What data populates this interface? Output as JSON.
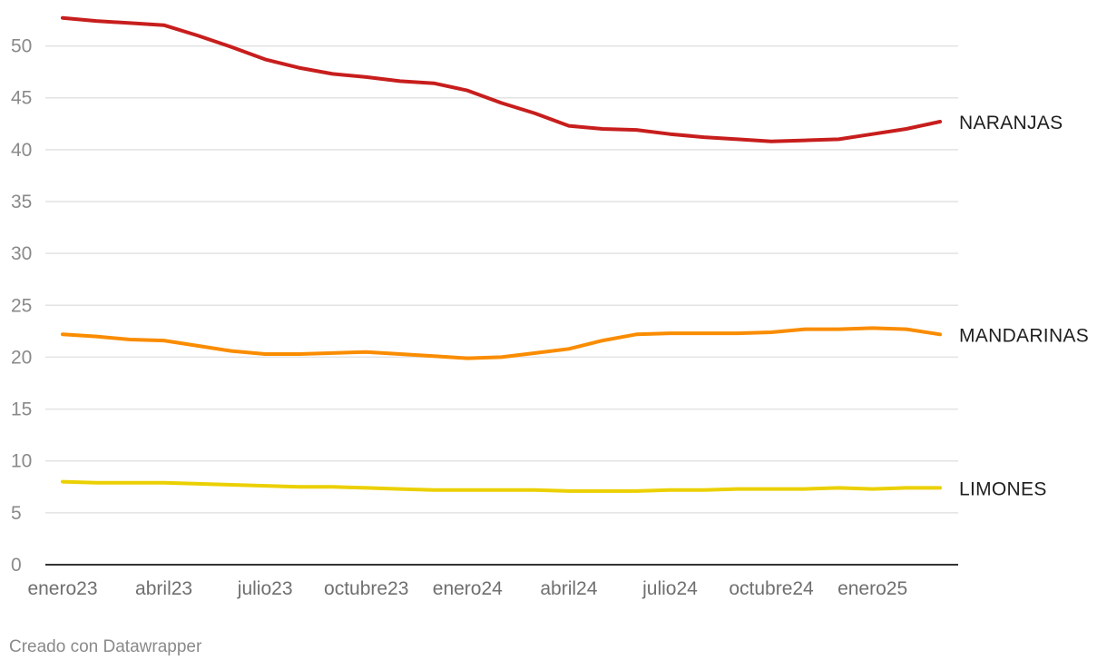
{
  "chart_data": {
    "type": "line",
    "x": [
      "ene 2023",
      "feb 2023",
      "mar 2023",
      "abr 2023",
      "may 2023",
      "jun 2023",
      "jul 2023",
      "ago 2023",
      "sep 2023",
      "oct 2023",
      "nov 2023",
      "dic 2023",
      "ene 2024",
      "feb 2024",
      "mar 2024",
      "abr 2024",
      "may 2024",
      "jun 2024",
      "jul 2024",
      "ago 2024",
      "sep 2024",
      "oct 2024",
      "nov 2024",
      "dic 2024",
      "ene 2025",
      "feb 2025",
      "mar 2025"
    ],
    "xticks": [
      {
        "label": "enero23",
        "at": "ene 2023"
      },
      {
        "label": "abril23",
        "at": "abr 2023"
      },
      {
        "label": "julio23",
        "at": "jul 2023"
      },
      {
        "label": "octubre23",
        "at": "oct 2023"
      },
      {
        "label": "enero24",
        "at": "ene 2024"
      },
      {
        "label": "abril24",
        "at": "abr 2024"
      },
      {
        "label": "julio24",
        "at": "jul 2024"
      },
      {
        "label": "octubre24",
        "at": "oct 2024"
      },
      {
        "label": "enero25",
        "at": "ene 2025"
      }
    ],
    "yticks": [
      0,
      5,
      10,
      15,
      20,
      25,
      30,
      35,
      40,
      45,
      50
    ],
    "ylim": [
      0,
      52.5
    ],
    "grid": true,
    "legend": "direct labels at line ends",
    "series": [
      {
        "name": "NARANJAS",
        "color": "#c71e1d",
        "values": [
          52.7,
          52.4,
          52.2,
          52.0,
          51.0,
          49.9,
          48.7,
          47.9,
          47.3,
          47.0,
          46.6,
          46.4,
          45.7,
          44.5,
          43.5,
          42.3,
          42.0,
          41.9,
          41.5,
          41.2,
          41.0,
          40.8,
          40.9,
          41.0,
          41.5,
          42.0,
          42.7
        ]
      },
      {
        "name": "MANDARINAS",
        "color": "#fa8c00",
        "values": [
          22.2,
          22.0,
          21.7,
          21.6,
          21.1,
          20.6,
          20.3,
          20.3,
          20.4,
          20.5,
          20.3,
          20.1,
          19.9,
          20.0,
          20.4,
          20.8,
          21.6,
          22.2,
          22.3,
          22.3,
          22.3,
          22.4,
          22.7,
          22.7,
          22.8,
          22.7,
          22.2
        ]
      },
      {
        "name": "LIMONES",
        "color": "#ebd001",
        "values": [
          8.0,
          7.9,
          7.9,
          7.9,
          7.8,
          7.7,
          7.6,
          7.5,
          7.5,
          7.4,
          7.3,
          7.2,
          7.2,
          7.2,
          7.2,
          7.1,
          7.1,
          7.1,
          7.2,
          7.2,
          7.3,
          7.3,
          7.3,
          7.4,
          7.3,
          7.4,
          7.4
        ]
      }
    ]
  },
  "footer": {
    "text": "Creado con Datawrapper"
  }
}
